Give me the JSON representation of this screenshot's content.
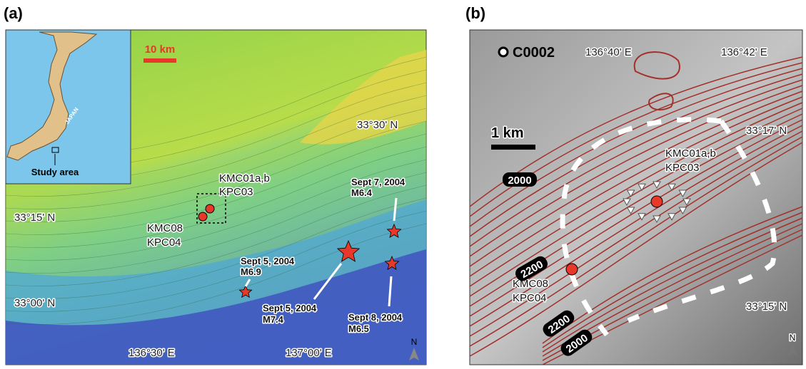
{
  "panels": [
    {
      "label": "(a)",
      "scale_bar": "10 km",
      "inset": {
        "country": "JAPAN",
        "caption": "Study area"
      },
      "lat_labels": [
        "33°30' N",
        "33°15' N",
        "33°00' N"
      ],
      "lon_labels": [
        "136°30' E",
        "137°00' E"
      ],
      "sites": [
        {
          "lines": [
            "KMC01a,b",
            "KPC03"
          ]
        },
        {
          "lines": [
            "KMC08",
            "KPC04"
          ]
        }
      ],
      "earthquakes": [
        {
          "date": "Sept 7, 2004",
          "magnitude": "M6.4"
        },
        {
          "date": "Sept 5, 2004",
          "magnitude": "M6.9"
        },
        {
          "date": "Sept 5, 2004",
          "magnitude": "M7.4"
        },
        {
          "date": "Sept 8, 2004",
          "magnitude": "M6.5"
        }
      ],
      "north": "N"
    },
    {
      "label": "(b)",
      "site": "C0002",
      "scale_bar": "1 km",
      "lon_labels": [
        "136°40' E",
        "136°42' E"
      ],
      "lat_labels": [
        "33°17' N",
        "33°15' N"
      ],
      "sites": [
        {
          "lines": [
            "KMC01a,b",
            "KPC03"
          ]
        },
        {
          "lines": [
            "KMC08",
            "KPC04"
          ]
        }
      ],
      "contour_labels": [
        "2000",
        "2200",
        "2200",
        "2000"
      ],
      "north": "N"
    }
  ]
}
